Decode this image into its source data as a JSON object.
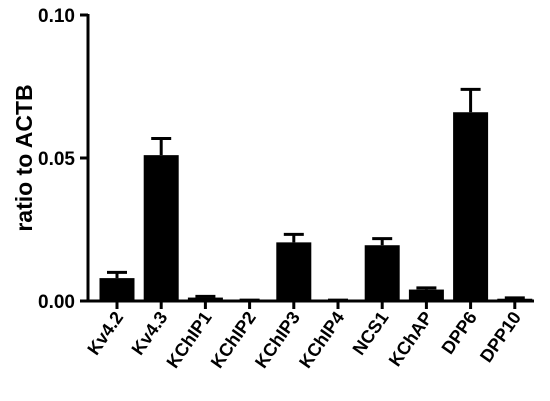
{
  "chart_data": {
    "type": "bar",
    "title": "",
    "xlabel": "",
    "ylabel": "ratio to ACTB",
    "ylim": [
      0,
      0.1
    ],
    "yticks": [
      "0.00",
      "0.05",
      "0.10"
    ],
    "yticks_values": [
      0,
      0.05,
      0.1
    ],
    "categories": [
      "Kv4.2",
      "Kv4.3",
      "KChIP1",
      "KChIP2",
      "KChIP3",
      "KChIP4",
      "NCS1",
      "KChAP",
      "DPP6",
      "DPP10"
    ],
    "values": [
      0.008,
      0.051,
      0.0012,
      0.0002,
      0.0205,
      0.0002,
      0.0195,
      0.004,
      0.066,
      0.0008
    ],
    "errors": [
      0.002,
      0.0058,
      0.0004,
      0.0001,
      0.0028,
      0.0001,
      0.0023,
      0.0006,
      0.008,
      0.0003
    ],
    "bar_color": "#000000",
    "grid": false,
    "legend": "none"
  }
}
